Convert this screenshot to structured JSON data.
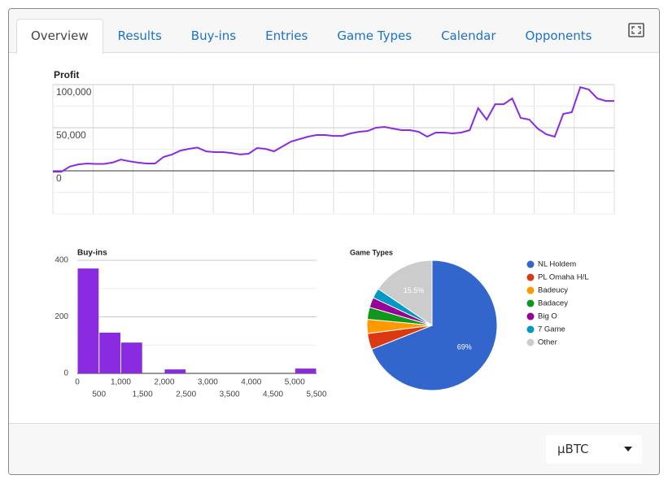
{
  "tabs": [
    "Overview",
    "Results",
    "Buy-ins",
    "Entries",
    "Game Types",
    "Calendar",
    "Opponents"
  ],
  "active_tab": "Overview",
  "footer": {
    "unit": "µBTC"
  },
  "chart_data": [
    {
      "type": "line",
      "title": "Profit",
      "color": "#8a2be2",
      "ylim": [
        -50000,
        100000
      ],
      "yticks": [
        0,
        {
          "value": 50000,
          "label": "50,000"
        },
        {
          "value": 100000,
          "label": "100,000"
        }
      ],
      "grid": true,
      "values": [
        -1000,
        -1000,
        5000,
        7500,
        8500,
        8000,
        8000,
        9500,
        13000,
        11000,
        9500,
        8500,
        8500,
        16000,
        19000,
        23500,
        25500,
        27000,
        22600,
        21700,
        21700,
        20700,
        19000,
        19800,
        26400,
        25500,
        22600,
        28300,
        34000,
        36800,
        39600,
        41500,
        41500,
        40500,
        40500,
        43400,
        45300,
        46200,
        50000,
        50900,
        49000,
        47200,
        47200,
        45300,
        39600,
        44300,
        44300,
        43400,
        44300,
        47200,
        72600,
        59400,
        77300,
        77300,
        84000,
        61300,
        59400,
        49000,
        42400,
        39600,
        66000,
        67900,
        97000,
        94300,
        84000,
        81000,
        81000
      ]
    },
    {
      "type": "histogram",
      "title": "Buy-ins",
      "color": "#8a2be2",
      "bins": [
        0,
        500,
        1000,
        1500,
        2000,
        2500,
        3000,
        3500,
        4000,
        4500,
        5000,
        5500
      ],
      "values": [
        371,
        144,
        109,
        0,
        14,
        0,
        0,
        0,
        0,
        0,
        17
      ],
      "xlim": [
        0,
        5500
      ],
      "xticks": [
        0,
        500,
        {
          "value": 1000,
          "label": "1,000"
        },
        {
          "value": 1500,
          "label": "1,500"
        },
        {
          "value": 2000,
          "label": "2,000"
        },
        {
          "value": 2500,
          "label": "2,500"
        },
        {
          "value": 3000,
          "label": "3,000"
        },
        {
          "value": 3500,
          "label": "3,500"
        },
        {
          "value": 4000,
          "label": "4,000"
        },
        {
          "value": 4500,
          "label": "4,500"
        },
        {
          "value": 5000,
          "label": "5,000"
        },
        {
          "value": 5500,
          "label": "5,500"
        }
      ],
      "ylim": [
        0,
        400
      ],
      "yticks": [
        0,
        200,
        400
      ],
      "grid": true
    },
    {
      "type": "pie",
      "title": "Game Types",
      "categories": [
        "NL Holdem",
        "PL Omaha H/L",
        "Badeucy",
        "Badacey",
        "Big O",
        "7 Game",
        "Other"
      ],
      "values": [
        69,
        4,
        3.5,
        3,
        2.5,
        2.5,
        15.5
      ],
      "value_labels": [
        "69%",
        null,
        null,
        null,
        null,
        null,
        "15.5%"
      ],
      "colors": [
        "#3366cc",
        "#dc3912",
        "#ff9900",
        "#109618",
        "#990099",
        "#0099c6",
        "#cccccc"
      ],
      "legend": "right"
    }
  ]
}
